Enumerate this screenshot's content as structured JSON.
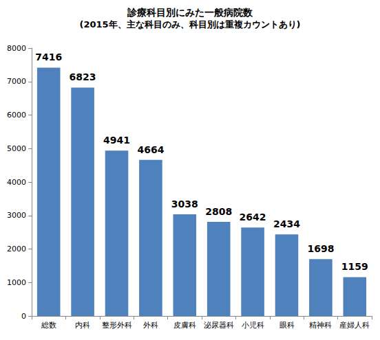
{
  "chart_data": {
    "type": "bar",
    "title": "診療科目別にみた一般病院数",
    "subtitle": "(2015年、主な科目のみ、科目別は重複カウントあり)",
    "categories": [
      "総数",
      "内科",
      "整形外科",
      "外科",
      "皮膚科",
      "泌尿器科",
      "小児科",
      "眼科",
      "精神科",
      "産婦人科"
    ],
    "values": [
      7416,
      6823,
      4941,
      4664,
      3038,
      2808,
      2642,
      2434,
      1698,
      1159
    ],
    "color": "#4f81bd",
    "ylim": [
      0,
      8000
    ],
    "yticks": [
      0,
      1000,
      2000,
      3000,
      4000,
      5000,
      6000,
      7000,
      8000
    ],
    "grid": false,
    "data_labels": true
  }
}
